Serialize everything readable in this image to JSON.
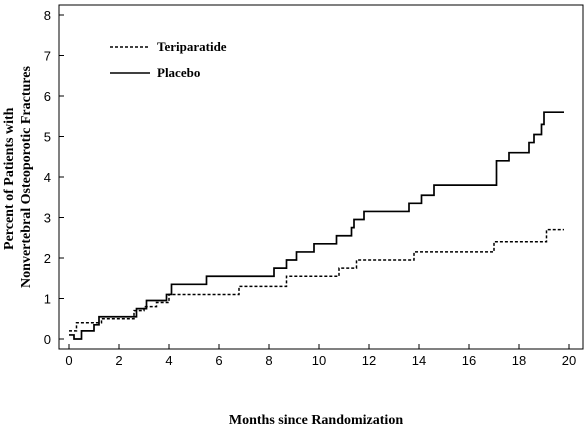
{
  "chart_data": {
    "type": "line",
    "step": true,
    "xlabel": "Months since Randomization",
    "ylabel": [
      "Percent of Patients with",
      "Nonvertebral Osteoporotic Fractures"
    ],
    "xlim": [
      0,
      20
    ],
    "ylim": [
      0,
      8
    ],
    "xticks": [
      0,
      2,
      4,
      6,
      8,
      10,
      12,
      14,
      16,
      18,
      20
    ],
    "yticks": [
      0,
      1,
      2,
      3,
      4,
      5,
      6,
      7,
      8
    ],
    "grid": false,
    "legend_position": "top-left",
    "series": [
      {
        "name": "Teriparatide",
        "style": "dotted",
        "color": "#000000",
        "points": [
          [
            0,
            0.2
          ],
          [
            0.3,
            0.4
          ],
          [
            1.3,
            0.5
          ],
          [
            2.6,
            0.7
          ],
          [
            3.0,
            0.8
          ],
          [
            3.5,
            0.9
          ],
          [
            4.0,
            1.1
          ],
          [
            6.8,
            1.3
          ],
          [
            8.7,
            1.55
          ],
          [
            10.8,
            1.75
          ],
          [
            11.5,
            1.95
          ],
          [
            13.8,
            2.15
          ],
          [
            17.0,
            2.4
          ],
          [
            19.1,
            2.7
          ],
          [
            19.8,
            2.7
          ]
        ]
      },
      {
        "name": "Placebo",
        "style": "solid",
        "color": "#000000",
        "points": [
          [
            0,
            0.1
          ],
          [
            0.2,
            0.0
          ],
          [
            0.5,
            0.2
          ],
          [
            1.0,
            0.35
          ],
          [
            1.2,
            0.55
          ],
          [
            2.7,
            0.75
          ],
          [
            3.1,
            0.95
          ],
          [
            3.9,
            1.1
          ],
          [
            4.1,
            1.35
          ],
          [
            5.5,
            1.55
          ],
          [
            8.2,
            1.75
          ],
          [
            8.7,
            1.95
          ],
          [
            9.1,
            2.15
          ],
          [
            9.8,
            2.35
          ],
          [
            10.7,
            2.55
          ],
          [
            11.3,
            2.75
          ],
          [
            11.4,
            2.95
          ],
          [
            11.8,
            3.15
          ],
          [
            13.6,
            3.35
          ],
          [
            14.1,
            3.55
          ],
          [
            14.6,
            3.8
          ],
          [
            17.1,
            4.4
          ],
          [
            17.6,
            4.6
          ],
          [
            18.4,
            4.85
          ],
          [
            18.6,
            5.05
          ],
          [
            18.9,
            5.3
          ],
          [
            19.0,
            5.6
          ],
          [
            19.8,
            5.6
          ]
        ]
      }
    ]
  }
}
